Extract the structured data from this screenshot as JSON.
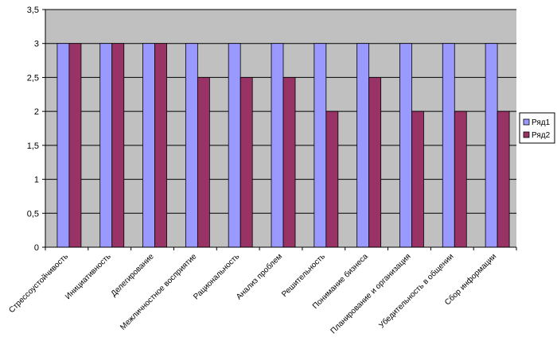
{
  "chart_data": {
    "type": "bar",
    "categories": [
      "Стрессоустойчивость",
      "Инициативность",
      "Делегирование",
      "Межличностное восприятие",
      "Рациональность",
      "Анализ проблем",
      "Решительность",
      "Понимание бизнеса",
      "Планирование и организация",
      "Убедительность в общении",
      "Сбор информации"
    ],
    "series": [
      {
        "name": "Ряд1",
        "color": "#9999ff",
        "values": [
          3,
          3,
          3,
          3,
          3,
          3,
          3,
          3,
          3,
          3,
          3
        ]
      },
      {
        "name": "Ряд2",
        "color": "#993366",
        "values": [
          3,
          3,
          3,
          2.5,
          2.5,
          2.5,
          2,
          2.5,
          2,
          2,
          2
        ]
      }
    ],
    "ylim": [
      0,
      3.5
    ],
    "yticks": [
      "0",
      "0,5",
      "1",
      "1,5",
      "2",
      "2,5",
      "3",
      "3,5"
    ],
    "grid": true,
    "legend": "right",
    "plot_background": "#c0c0c0"
  }
}
